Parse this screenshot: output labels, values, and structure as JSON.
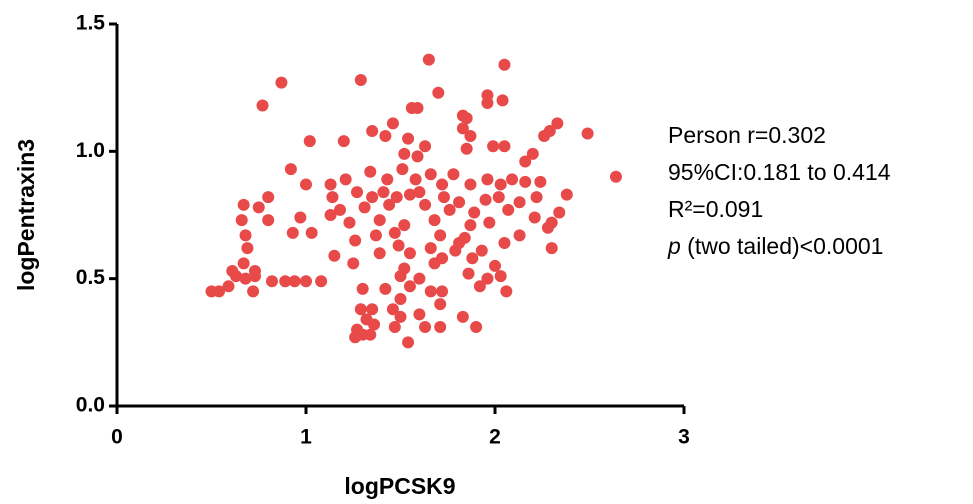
{
  "chart_data": {
    "type": "scatter",
    "x_label": "logPCSK9",
    "y_label": "logPentraxin3",
    "color": "#e84a4a",
    "xlim": [
      0,
      3
    ],
    "ylim": [
      0,
      1.5
    ],
    "xticks": [
      0,
      1,
      2,
      3
    ],
    "yticks": [
      {
        "value": 0,
        "label": "0.0"
      },
      0.5,
      {
        "value": 1,
        "label": "1.0"
      },
      1.5
    ],
    "annotations": [
      "Person r=0.302",
      "95%CI:0.181 to 0.414",
      "R²=0.091"
    ],
    "p_value": {
      "symbol": "p",
      "text": " (two tailed)<0.0001"
    },
    "x": [
      1.65,
      2.05,
      1.29,
      0.87,
      1.7,
      1.96,
      2.04,
      1.96,
      0.77,
      1.56,
      1.59,
      1.83,
      1.85,
      1.46,
      2.33,
      2.49,
      2.29,
      2.26,
      1.35,
      1.42,
      1.83,
      1.87,
      1.02,
      1.2,
      1.54,
      1.63,
      1.85,
      1.99,
      2.05,
      2.2,
      1.52,
      1.59,
      0.92,
      2.16,
      2.64,
      1.0,
      1.13,
      1.21,
      1.34,
      1.43,
      1.51,
      1.58,
      1.66,
      1.72,
      1.78,
      1.87,
      1.96,
      2.03,
      2.09,
      2.16,
      2.24,
      2.38,
      0.8,
      1.14,
      1.27,
      1.35,
      1.41,
      1.48,
      1.55,
      1.6,
      1.73,
      1.81,
      1.95,
      2.02,
      2.13,
      2.22,
      0.67,
      0.75,
      1.18,
      1.31,
      1.44,
      1.63,
      1.76,
      1.89,
      2.07,
      2.34,
      0.66,
      0.8,
      0.97,
      1.13,
      1.23,
      1.39,
      1.52,
      1.68,
      1.87,
      1.97,
      2.21,
      2.3,
      0.93,
      1.03,
      1.37,
      1.47,
      1.71,
      1.84,
      2.13,
      2.28,
      0.68,
      1.26,
      1.49,
      1.66,
      1.81,
      1.93,
      2.05,
      2.3,
      0.69,
      1.15,
      1.39,
      1.55,
      1.72,
      1.79,
      1.88,
      0.67,
      1.25,
      1.52,
      1.68,
      2.0,
      0.61,
      0.73,
      0.63,
      0.68,
      0.73,
      0.82,
      0.89,
      0.94,
      1.0,
      1.08,
      1.5,
      1.6,
      1.86,
      1.96,
      2.03,
      0.5,
      0.54,
      0.59,
      0.72,
      1.3,
      1.42,
      1.55,
      1.66,
      1.72,
      1.92,
      2.06,
      1.5,
      1.35,
      1.46,
      1.71,
      1.29,
      1.5,
      1.6,
      1.83,
      1.32,
      1.36,
      1.47,
      1.63,
      1.71,
      1.9,
      1.27,
      1.3,
      1.34,
      1.26,
      1.54
    ],
    "values": [
      1.36,
      1.34,
      1.28,
      1.27,
      1.23,
      1.22,
      1.2,
      1.19,
      1.18,
      1.17,
      1.17,
      1.14,
      1.13,
      1.11,
      1.11,
      1.07,
      1.08,
      1.06,
      1.08,
      1.06,
      1.09,
      1.06,
      1.04,
      1.04,
      1.05,
      1.02,
      1.01,
      1.02,
      1.02,
      0.99,
      0.99,
      0.98,
      0.93,
      0.96,
      0.9,
      0.87,
      0.87,
      0.89,
      0.92,
      0.89,
      0.93,
      0.89,
      0.91,
      0.87,
      0.91,
      0.87,
      0.89,
      0.87,
      0.89,
      0.88,
      0.88,
      0.83,
      0.82,
      0.82,
      0.84,
      0.82,
      0.84,
      0.82,
      0.83,
      0.84,
      0.82,
      0.8,
      0.81,
      0.82,
      0.8,
      0.82,
      0.79,
      0.78,
      0.77,
      0.78,
      0.79,
      0.79,
      0.77,
      0.76,
      0.77,
      0.76,
      0.73,
      0.73,
      0.74,
      0.75,
      0.72,
      0.73,
      0.71,
      0.73,
      0.71,
      0.72,
      0.74,
      0.72,
      0.68,
      0.68,
      0.67,
      0.68,
      0.67,
      0.66,
      0.67,
      0.7,
      0.67,
      0.65,
      0.63,
      0.62,
      0.64,
      0.61,
      0.64,
      0.62,
      0.62,
      0.59,
      0.6,
      0.6,
      0.58,
      0.61,
      0.58,
      0.56,
      0.56,
      0.54,
      0.56,
      0.55,
      0.53,
      0.53,
      0.51,
      0.5,
      0.51,
      0.49,
      0.49,
      0.49,
      0.49,
      0.49,
      0.51,
      0.5,
      0.52,
      0.5,
      0.51,
      0.45,
      0.45,
      0.47,
      0.45,
      0.46,
      0.46,
      0.47,
      0.45,
      0.45,
      0.47,
      0.45,
      0.42,
      0.38,
      0.38,
      0.4,
      0.38,
      0.35,
      0.36,
      0.35,
      0.34,
      0.32,
      0.31,
      0.31,
      0.31,
      0.31,
      0.3,
      0.28,
      0.28,
      0.27,
      0.25
    ]
  }
}
